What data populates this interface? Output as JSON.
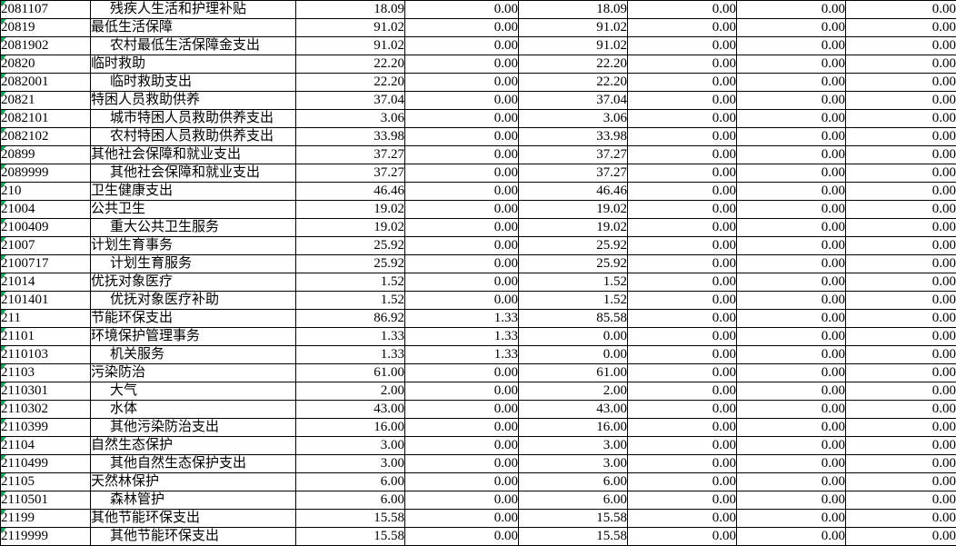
{
  "app": {
    "view": "spreadsheet-budget-table"
  },
  "colors": {
    "grid_border": "#000000",
    "cell_background": "#ffffff",
    "text": "#000000",
    "stored_as_text_indicator_green": "#00a651"
  },
  "icons": {
    "code_cell_corner": "number-stored-as-text-triangle"
  },
  "table": {
    "rows": [
      {
        "code": "2081107",
        "name": "残疾人生活和护理补贴",
        "indent": true,
        "values": [
          "18.09",
          "0.00",
          "18.09",
          "0.00",
          "0.00",
          "0.00"
        ]
      },
      {
        "code": "20819",
        "name": "最低生活保障",
        "indent": false,
        "values": [
          "91.02",
          "0.00",
          "91.02",
          "0.00",
          "0.00",
          "0.00"
        ]
      },
      {
        "code": "2081902",
        "name": "农村最低生活保障金支出",
        "indent": true,
        "values": [
          "91.02",
          "0.00",
          "91.02",
          "0.00",
          "0.00",
          "0.00"
        ]
      },
      {
        "code": "20820",
        "name": "临时救助",
        "indent": false,
        "values": [
          "22.20",
          "0.00",
          "22.20",
          "0.00",
          "0.00",
          "0.00"
        ]
      },
      {
        "code": "2082001",
        "name": "临时救助支出",
        "indent": true,
        "values": [
          "22.20",
          "0.00",
          "22.20",
          "0.00",
          "0.00",
          "0.00"
        ]
      },
      {
        "code": "20821",
        "name": "特困人员救助供养",
        "indent": false,
        "values": [
          "37.04",
          "0.00",
          "37.04",
          "0.00",
          "0.00",
          "0.00"
        ]
      },
      {
        "code": "2082101",
        "name": "城市特困人员救助供养支出",
        "indent": true,
        "values": [
          "3.06",
          "0.00",
          "3.06",
          "0.00",
          "0.00",
          "0.00"
        ]
      },
      {
        "code": "2082102",
        "name": "农村特困人员救助供养支出",
        "indent": true,
        "values": [
          "33.98",
          "0.00",
          "33.98",
          "0.00",
          "0.00",
          "0.00"
        ]
      },
      {
        "code": "20899",
        "name": "其他社会保障和就业支出",
        "indent": false,
        "values": [
          "37.27",
          "0.00",
          "37.27",
          "0.00",
          "0.00",
          "0.00"
        ]
      },
      {
        "code": "2089999",
        "name": "其他社会保障和就业支出",
        "indent": true,
        "values": [
          "37.27",
          "0.00",
          "37.27",
          "0.00",
          "0.00",
          "0.00"
        ]
      },
      {
        "code": "210",
        "name": "卫生健康支出",
        "indent": false,
        "values": [
          "46.46",
          "0.00",
          "46.46",
          "0.00",
          "0.00",
          "0.00"
        ]
      },
      {
        "code": "21004",
        "name": "公共卫生",
        "indent": false,
        "values": [
          "19.02",
          "0.00",
          "19.02",
          "0.00",
          "0.00",
          "0.00"
        ]
      },
      {
        "code": "2100409",
        "name": "重大公共卫生服务",
        "indent": true,
        "values": [
          "19.02",
          "0.00",
          "19.02",
          "0.00",
          "0.00",
          "0.00"
        ]
      },
      {
        "code": "21007",
        "name": "计划生育事务",
        "indent": false,
        "values": [
          "25.92",
          "0.00",
          "25.92",
          "0.00",
          "0.00",
          "0.00"
        ]
      },
      {
        "code": "2100717",
        "name": "计划生育服务",
        "indent": true,
        "values": [
          "25.92",
          "0.00",
          "25.92",
          "0.00",
          "0.00",
          "0.00"
        ]
      },
      {
        "code": "21014",
        "name": "优抚对象医疗",
        "indent": false,
        "values": [
          "1.52",
          "0.00",
          "1.52",
          "0.00",
          "0.00",
          "0.00"
        ]
      },
      {
        "code": "2101401",
        "name": "优抚对象医疗补助",
        "indent": true,
        "values": [
          "1.52",
          "0.00",
          "1.52",
          "0.00",
          "0.00",
          "0.00"
        ]
      },
      {
        "code": "211",
        "name": "节能环保支出",
        "indent": false,
        "values": [
          "86.92",
          "1.33",
          "85.58",
          "0.00",
          "0.00",
          "0.00"
        ]
      },
      {
        "code": "21101",
        "name": "环境保护管理事务",
        "indent": false,
        "values": [
          "1.33",
          "1.33",
          "0.00",
          "0.00",
          "0.00",
          "0.00"
        ]
      },
      {
        "code": "2110103",
        "name": "机关服务",
        "indent": true,
        "values": [
          "1.33",
          "1.33",
          "0.00",
          "0.00",
          "0.00",
          "0.00"
        ]
      },
      {
        "code": "21103",
        "name": "污染防治",
        "indent": false,
        "values": [
          "61.00",
          "0.00",
          "61.00",
          "0.00",
          "0.00",
          "0.00"
        ]
      },
      {
        "code": "2110301",
        "name": "大气",
        "indent": true,
        "values": [
          "2.00",
          "0.00",
          "2.00",
          "0.00",
          "0.00",
          "0.00"
        ]
      },
      {
        "code": "2110302",
        "name": "水体",
        "indent": true,
        "values": [
          "43.00",
          "0.00",
          "43.00",
          "0.00",
          "0.00",
          "0.00"
        ]
      },
      {
        "code": "2110399",
        "name": "其他污染防治支出",
        "indent": true,
        "values": [
          "16.00",
          "0.00",
          "16.00",
          "0.00",
          "0.00",
          "0.00"
        ]
      },
      {
        "code": "21104",
        "name": "自然生态保护",
        "indent": false,
        "values": [
          "3.00",
          "0.00",
          "3.00",
          "0.00",
          "0.00",
          "0.00"
        ]
      },
      {
        "code": "2110499",
        "name": "其他自然生态保护支出",
        "indent": true,
        "values": [
          "3.00",
          "0.00",
          "3.00",
          "0.00",
          "0.00",
          "0.00"
        ]
      },
      {
        "code": "21105",
        "name": "天然林保护",
        "indent": false,
        "values": [
          "6.00",
          "0.00",
          "6.00",
          "0.00",
          "0.00",
          "0.00"
        ]
      },
      {
        "code": "2110501",
        "name": "森林管护",
        "indent": true,
        "values": [
          "6.00",
          "0.00",
          "6.00",
          "0.00",
          "0.00",
          "0.00"
        ]
      },
      {
        "code": "21199",
        "name": "其他节能环保支出",
        "indent": false,
        "values": [
          "15.58",
          "0.00",
          "15.58",
          "0.00",
          "0.00",
          "0.00"
        ]
      },
      {
        "code": "2119999",
        "name": "其他节能环保支出",
        "indent": true,
        "values": [
          "15.58",
          "0.00",
          "15.58",
          "0.00",
          "0.00",
          "0.00"
        ]
      }
    ]
  }
}
